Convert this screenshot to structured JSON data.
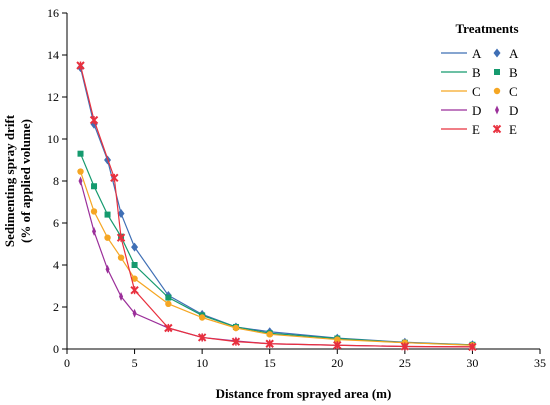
{
  "chart_data": {
    "type": "line",
    "xlabel": "Distance from sprayed area (m)",
    "ylabel_lines": [
      "Sedimenting spray drift",
      "(% of applied volume)"
    ],
    "xlim": [
      0,
      35
    ],
    "ylim": [
      0,
      16
    ],
    "xticks": [
      "0",
      "5",
      "10",
      "15",
      "20",
      "25",
      "30",
      "35"
    ],
    "yticks": [
      "0",
      "2",
      "4",
      "6",
      "8",
      "10",
      "12",
      "14",
      "16"
    ],
    "grid": false,
    "legend": {
      "title": "Treatments",
      "placement": "top-right",
      "line_header": "",
      "marker_header": ""
    },
    "series": [
      {
        "name": "A",
        "color": "#3f6fb5",
        "marker": "diamond",
        "x": [
          1,
          2,
          3,
          4,
          5,
          7.5,
          10,
          12.5,
          15,
          20,
          25,
          30
        ],
        "y": [
          13.4,
          10.7,
          9.0,
          6.45,
          4.85,
          2.55,
          1.65,
          1.05,
          0.82,
          0.52,
          0.32,
          0.2
        ]
      },
      {
        "name": "B",
        "color": "#159a6e",
        "marker": "square",
        "x": [
          1,
          2,
          3,
          4,
          5,
          7.5,
          10,
          12.5,
          15,
          20,
          25,
          30
        ],
        "y": [
          9.3,
          7.75,
          6.4,
          5.35,
          4.0,
          2.45,
          1.6,
          1.05,
          0.75,
          0.5,
          0.3,
          0.2
        ]
      },
      {
        "name": "C",
        "color": "#f5a623",
        "marker": "circle",
        "x": [
          1,
          2,
          3,
          4,
          5,
          7.5,
          10,
          12.5,
          15,
          20,
          25,
          30
        ],
        "y": [
          8.45,
          6.55,
          5.3,
          4.35,
          3.35,
          2.15,
          1.5,
          1.0,
          0.7,
          0.45,
          0.3,
          0.18
        ]
      },
      {
        "name": "D",
        "color": "#9b2f9a",
        "marker": "thin-diamond",
        "x": [
          1,
          2,
          3,
          4,
          5,
          7.5,
          10,
          12.5,
          15,
          20,
          25,
          30
        ],
        "y": [
          8.0,
          5.6,
          3.8,
          2.5,
          1.7,
          1.0,
          0.55,
          0.38,
          0.25,
          0.18,
          0.12,
          0.1
        ]
      },
      {
        "name": "E",
        "color": "#e8303e",
        "marker": "asterisk",
        "x": [
          1,
          2,
          3.5,
          4,
          5,
          7.5,
          10,
          12.5,
          15,
          20,
          25,
          30
        ],
        "y": [
          13.5,
          10.9,
          8.15,
          5.3,
          2.8,
          1.0,
          0.55,
          0.35,
          0.25,
          0.18,
          0.12,
          0.1
        ]
      }
    ]
  }
}
